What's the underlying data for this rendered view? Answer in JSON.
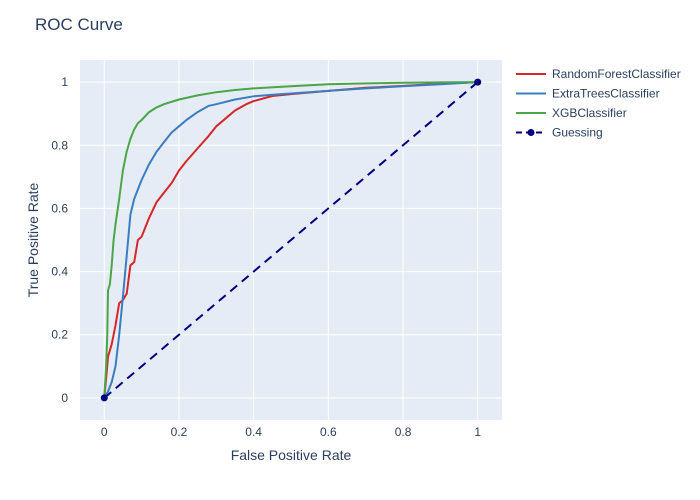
{
  "chart_data": {
    "type": "line",
    "title": "ROC Curve",
    "xlabel": "False Positive Rate",
    "ylabel": "True Positive Rate",
    "xlim": [
      -0.065,
      1.065
    ],
    "ylim": [
      -0.07,
      1.07
    ],
    "xticks": [
      0,
      0.2,
      0.4,
      0.6,
      0.8,
      1
    ],
    "yticks": [
      0,
      0.2,
      0.4,
      0.6,
      0.8,
      1
    ],
    "xtick_labels": [
      "0",
      "0.2",
      "0.4",
      "0.6",
      "0.8",
      "1"
    ],
    "ytick_labels": [
      "0",
      "0.2",
      "0.4",
      "0.6",
      "0.8",
      "1"
    ],
    "grid": true,
    "legend_position": "top-right-outside",
    "series": [
      {
        "name": "RandomForestClassifier",
        "color": "#d62728",
        "dash": "solid",
        "markers": false,
        "x": [
          0,
          0.005,
          0.01,
          0.02,
          0.03,
          0.04,
          0.05,
          0.06,
          0.07,
          0.08,
          0.09,
          0.1,
          0.12,
          0.14,
          0.16,
          0.18,
          0.2,
          0.22,
          0.25,
          0.28,
          0.3,
          0.33,
          0.35,
          0.38,
          0.4,
          0.45,
          0.5,
          0.55,
          0.6,
          0.7,
          0.8,
          0.9,
          1.0
        ],
        "y": [
          0,
          0.06,
          0.13,
          0.17,
          0.23,
          0.3,
          0.31,
          0.33,
          0.42,
          0.43,
          0.5,
          0.51,
          0.57,
          0.62,
          0.65,
          0.68,
          0.72,
          0.75,
          0.79,
          0.83,
          0.86,
          0.89,
          0.91,
          0.93,
          0.94,
          0.956,
          0.962,
          0.967,
          0.972,
          0.982,
          0.988,
          0.995,
          1.0
        ]
      },
      {
        "name": "ExtraTreesClassifier",
        "color": "#3a7ebf",
        "dash": "solid",
        "markers": false,
        "x": [
          0,
          0.01,
          0.02,
          0.03,
          0.04,
          0.05,
          0.06,
          0.07,
          0.08,
          0.1,
          0.12,
          0.14,
          0.16,
          0.18,
          0.2,
          0.22,
          0.25,
          0.28,
          0.3,
          0.35,
          0.4,
          0.45,
          0.5,
          0.6,
          0.7,
          0.8,
          0.9,
          1.0
        ],
        "y": [
          0,
          0.02,
          0.05,
          0.1,
          0.2,
          0.32,
          0.45,
          0.58,
          0.63,
          0.69,
          0.74,
          0.78,
          0.81,
          0.84,
          0.86,
          0.88,
          0.905,
          0.925,
          0.93,
          0.945,
          0.955,
          0.96,
          0.964,
          0.972,
          0.98,
          0.987,
          0.993,
          1.0
        ]
      },
      {
        "name": "XGBClassifier",
        "color": "#4aa647",
        "dash": "solid",
        "markers": false,
        "x": [
          0,
          0.005,
          0.008,
          0.01,
          0.015,
          0.02,
          0.025,
          0.03,
          0.04,
          0.05,
          0.06,
          0.07,
          0.08,
          0.09,
          0.1,
          0.12,
          0.14,
          0.16,
          0.2,
          0.25,
          0.3,
          0.35,
          0.4,
          0.5,
          0.6,
          0.7,
          0.8,
          0.9,
          1.0
        ],
        "y": [
          0,
          0.1,
          0.2,
          0.34,
          0.36,
          0.42,
          0.5,
          0.55,
          0.63,
          0.72,
          0.78,
          0.82,
          0.85,
          0.87,
          0.88,
          0.905,
          0.92,
          0.93,
          0.945,
          0.958,
          0.968,
          0.975,
          0.98,
          0.987,
          0.993,
          0.996,
          0.998,
          0.999,
          1.0
        ]
      },
      {
        "name": "Guessing",
        "color": "#00007f",
        "dash": "dash",
        "markers": true,
        "x": [
          0,
          1
        ],
        "y": [
          0,
          1
        ]
      }
    ]
  }
}
